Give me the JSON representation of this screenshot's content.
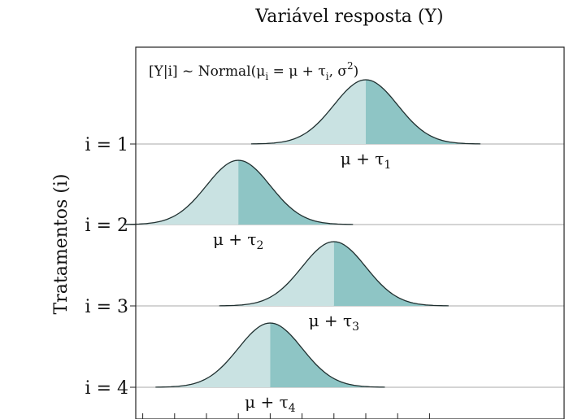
{
  "chart_data": {
    "type": "ridgeline-density",
    "title": "Variável resposta (Y)",
    "xlabel": "",
    "ylabel": "Tratamentos (i)",
    "annotation": "[Y|i] ~ Normal(μ_i = μ + τ_i, σ^2)",
    "annotation_parts": {
      "lead": "[Y|i] ~ Normal(μ",
      "sub_i": "i",
      "mid": " = μ + τ",
      "sub_i2": "i",
      "tail": ", σ",
      "sup": "2",
      "close": ")"
    },
    "xlim": [
      0,
      10
    ],
    "sigma": 1,
    "x_ticks": [
      0.5,
      1.5,
      2.5,
      3.5,
      4.5,
      5.5,
      6.5,
      7.5,
      8.5,
      9.5
    ],
    "grid": "horizontal baselines",
    "colors": {
      "left_fill": "#c9e2e2",
      "right_fill": "#8ec5c5",
      "curve": "#1f2f2f",
      "baseline": "#aaaaaa",
      "axis": "#222222"
    },
    "series": [
      {
        "name": "i = 1",
        "mean": 7.5,
        "label_base": "μ + τ",
        "label_sub": "1"
      },
      {
        "name": "i = 2",
        "mean": 3.5,
        "label_base": "μ + τ",
        "label_sub": "2"
      },
      {
        "name": "i = 3",
        "mean": 6.5,
        "label_base": "μ + τ",
        "label_sub": "3"
      },
      {
        "name": "i = 4",
        "mean": 4.5,
        "label_base": "μ + τ",
        "label_sub": "4"
      }
    ]
  }
}
